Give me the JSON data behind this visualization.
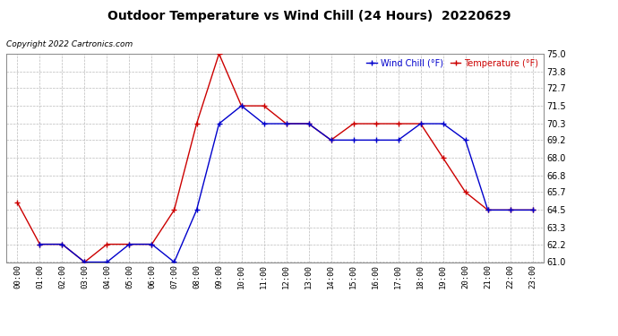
{
  "title": "Outdoor Temperature vs Wind Chill (24 Hours)  20220629",
  "copyright": "Copyright 2022 Cartronics.com",
  "legend_wind_chill": "Wind Chill (°F)",
  "legend_temperature": "Temperature (°F)",
  "x_labels": [
    "00:00",
    "01:00",
    "02:00",
    "03:00",
    "04:00",
    "05:00",
    "06:00",
    "07:00",
    "08:00",
    "09:00",
    "10:00",
    "11:00",
    "12:00",
    "13:00",
    "14:00",
    "15:00",
    "16:00",
    "17:00",
    "18:00",
    "19:00",
    "20:00",
    "21:00",
    "22:00",
    "23:00"
  ],
  "temperature": [
    65.0,
    62.2,
    62.2,
    61.0,
    62.2,
    62.2,
    62.2,
    64.5,
    70.3,
    75.0,
    71.5,
    71.5,
    70.3,
    70.3,
    69.2,
    70.3,
    70.3,
    70.3,
    70.3,
    68.0,
    65.7,
    64.5,
    64.5,
    64.5
  ],
  "wind_chill": [
    null,
    62.2,
    62.2,
    61.0,
    61.0,
    62.2,
    62.2,
    61.0,
    64.5,
    70.3,
    71.5,
    70.3,
    70.3,
    70.3,
    69.2,
    69.2,
    69.2,
    69.2,
    70.3,
    70.3,
    69.2,
    64.5,
    64.5,
    64.5
  ],
  "ylim_min": 61.0,
  "ylim_max": 75.0,
  "yticks": [
    61.0,
    62.2,
    63.3,
    64.5,
    65.7,
    66.8,
    68.0,
    69.2,
    70.3,
    71.5,
    72.7,
    73.8,
    75.0
  ],
  "temp_color": "#cc0000",
  "wind_chill_color": "#0000cc",
  "bg_color": "#ffffff",
  "grid_color": "#bbbbbb",
  "title_color": "#000000",
  "copyright_color": "#000000",
  "marker": "+"
}
